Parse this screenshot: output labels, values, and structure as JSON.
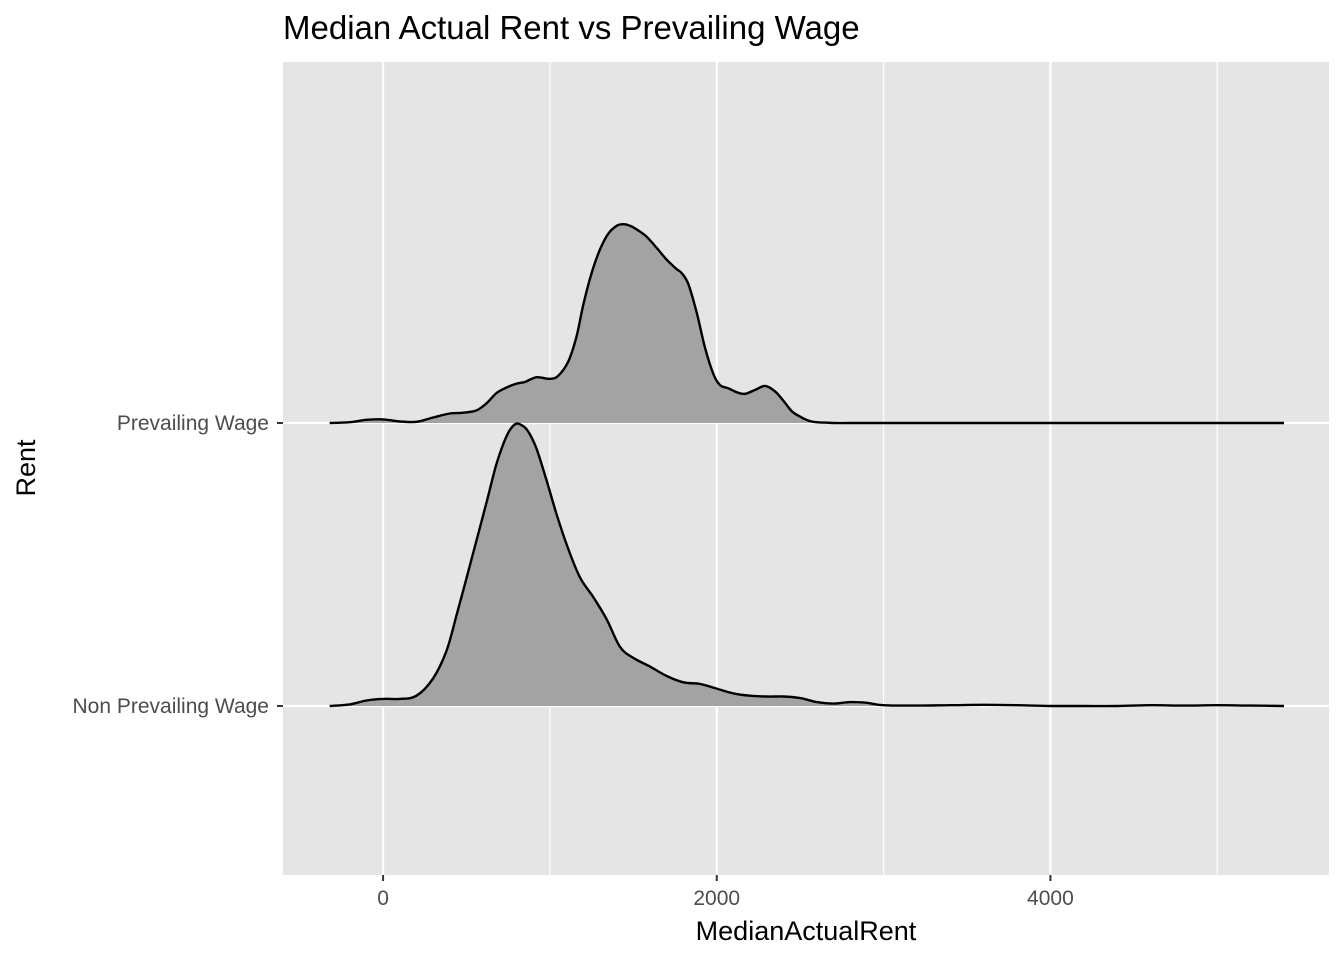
{
  "chart_data": {
    "type": "ridgeline",
    "title": "Median Actual Rent vs Prevailing Wage",
    "xlabel": "MedianActualRent",
    "ylabel": "Rent",
    "xlim": [
      -600,
      5670
    ],
    "x_ticks": [
      0,
      2000,
      4000
    ],
    "x_minor_ticks": [
      -1000,
      1000,
      3000,
      5000
    ],
    "grid": true,
    "legend": "none",
    "categories": [
      "Non Prevailing Wage",
      "Prevailing Wage"
    ],
    "fill_color": "#a3a3a3",
    "panel_color": "#e5e5e5",
    "series": [
      {
        "name": "Prevailing Wage",
        "x": [
          -320,
          -200,
          -100,
          0,
          100,
          200,
          300,
          400,
          480,
          560,
          620,
          680,
          740,
          800,
          850,
          920,
          1000,
          1050,
          1110,
          1160,
          1200,
          1250,
          1300,
          1350,
          1400,
          1440,
          1480,
          1530,
          1580,
          1640,
          1700,
          1760,
          1790,
          1830,
          1880,
          1930,
          1980,
          2020,
          2070,
          2120,
          2170,
          2230,
          2290,
          2350,
          2400,
          2450,
          2500,
          2550,
          2600,
          2650,
          2700,
          2800,
          3000,
          4000,
          5000,
          5400
        ],
        "density": [
          0.0,
          0.01,
          0.04,
          0.045,
          0.02,
          0.015,
          0.07,
          0.12,
          0.13,
          0.16,
          0.25,
          0.38,
          0.45,
          0.5,
          0.52,
          0.58,
          0.56,
          0.6,
          0.78,
          1.1,
          1.5,
          1.9,
          2.2,
          2.4,
          2.5,
          2.52,
          2.5,
          2.44,
          2.36,
          2.22,
          2.07,
          1.95,
          1.9,
          1.76,
          1.4,
          0.95,
          0.62,
          0.48,
          0.44,
          0.39,
          0.37,
          0.42,
          0.47,
          0.4,
          0.28,
          0.15,
          0.08,
          0.03,
          0.01,
          0.005,
          0.0,
          0.0,
          0.0,
          0.0,
          0.0,
          0.0
        ]
      },
      {
        "name": "Non Prevailing Wage",
        "x": [
          -320,
          -200,
          -100,
          0,
          100,
          200,
          300,
          380,
          440,
          500,
          560,
          620,
          680,
          740,
          790,
          830,
          870,
          920,
          980,
          1040,
          1110,
          1180,
          1260,
          1340,
          1420,
          1500,
          1600,
          1700,
          1800,
          1900,
          2000,
          2100,
          2200,
          2300,
          2400,
          2500,
          2600,
          2700,
          2800,
          2900,
          3000,
          3200,
          3400,
          3600,
          3800,
          4000,
          4200,
          4400,
          4600,
          4800,
          5000,
          5200,
          5400
        ],
        "density": [
          0.0,
          0.02,
          0.07,
          0.09,
          0.09,
          0.13,
          0.35,
          0.7,
          1.15,
          1.62,
          2.1,
          2.58,
          3.07,
          3.42,
          3.57,
          3.56,
          3.48,
          3.26,
          2.86,
          2.43,
          1.99,
          1.63,
          1.38,
          1.1,
          0.75,
          0.61,
          0.5,
          0.38,
          0.3,
          0.28,
          0.22,
          0.16,
          0.13,
          0.12,
          0.12,
          0.1,
          0.05,
          0.03,
          0.05,
          0.04,
          0.01,
          0.005,
          0.01,
          0.015,
          0.01,
          0.0,
          0.0,
          0.0,
          0.01,
          0.005,
          0.01,
          0.005,
          0.0
        ]
      }
    ]
  }
}
